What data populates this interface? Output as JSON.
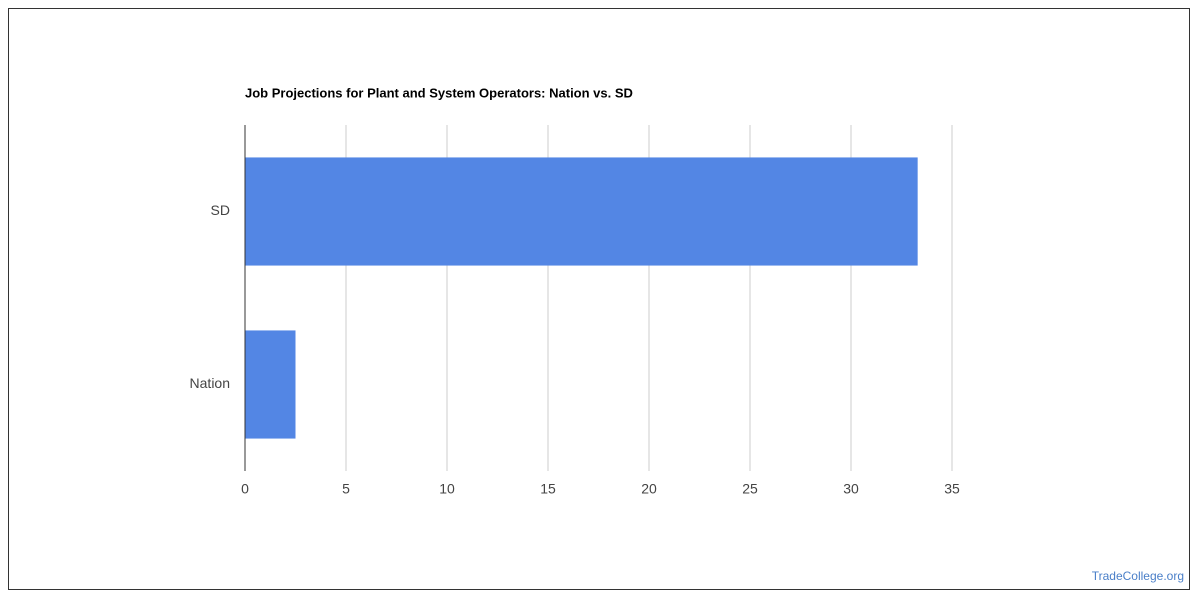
{
  "chart_data": {
    "type": "hbar",
    "title": "Job Projections for Plant and System Operators: Nation vs. SD",
    "categories": [
      "SD",
      "Nation"
    ],
    "values": [
      33.3,
      2.5
    ],
    "color": "#5386e4",
    "xlim": [
      0,
      35
    ],
    "xticks": [
      0,
      5,
      10,
      15,
      20,
      25,
      30,
      35
    ],
    "grid": true,
    "watermark": "TradeCollege.org"
  }
}
